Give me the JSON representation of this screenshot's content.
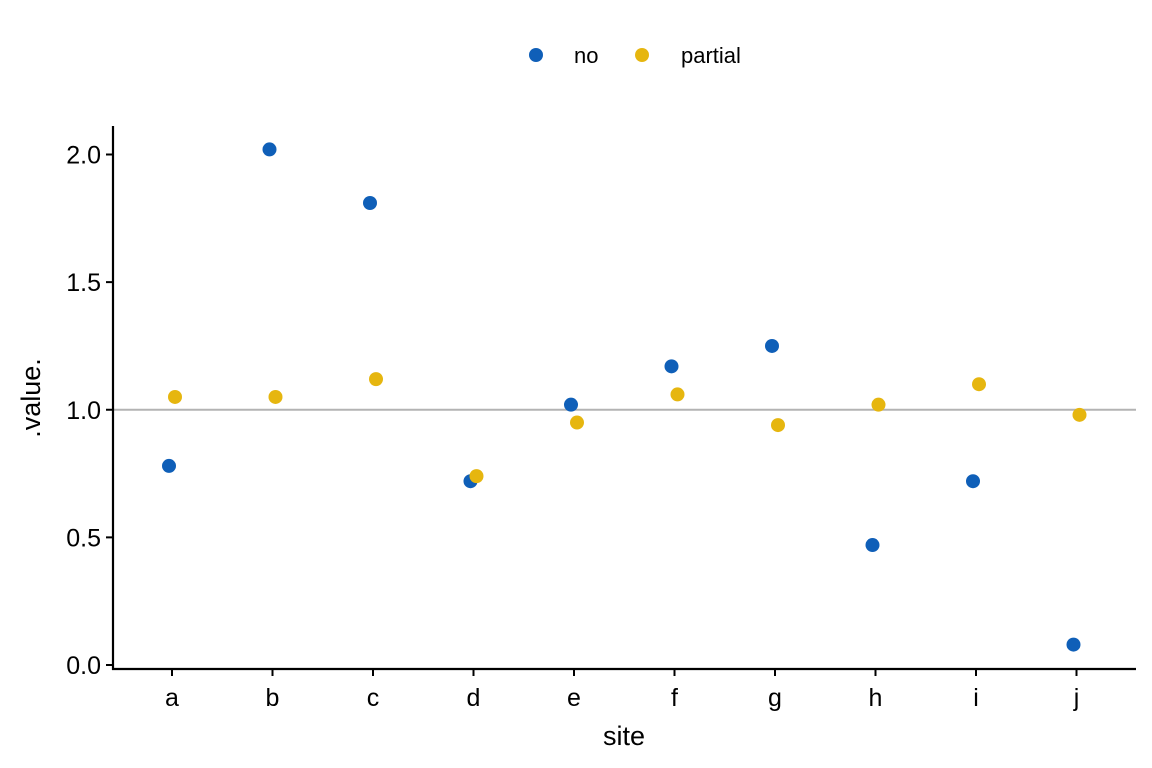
{
  "chart_data": {
    "type": "scatter",
    "xlabel": "site",
    "ylabel": ".value.",
    "categories": [
      "a",
      "b",
      "c",
      "d",
      "e",
      "f",
      "g",
      "h",
      "i",
      "j"
    ],
    "ylim": [
      0,
      2.1
    ],
    "yticks": [
      "0.0",
      "0.5",
      "1.0",
      "1.5",
      "2.0"
    ],
    "reference_line": 1.0,
    "reference_line_color": "#b3b3b3",
    "legend_position": "top",
    "grid": false,
    "series": [
      {
        "name": "no",
        "color": "#0f5fb8",
        "values": [
          0.78,
          2.02,
          1.81,
          0.72,
          1.02,
          1.17,
          1.25,
          0.47,
          0.72,
          0.08
        ]
      },
      {
        "name": "partial",
        "color": "#e6b60f",
        "values": [
          1.05,
          1.05,
          1.12,
          0.74,
          0.95,
          1.06,
          0.94,
          1.02,
          1.1,
          0.98
        ]
      }
    ]
  }
}
